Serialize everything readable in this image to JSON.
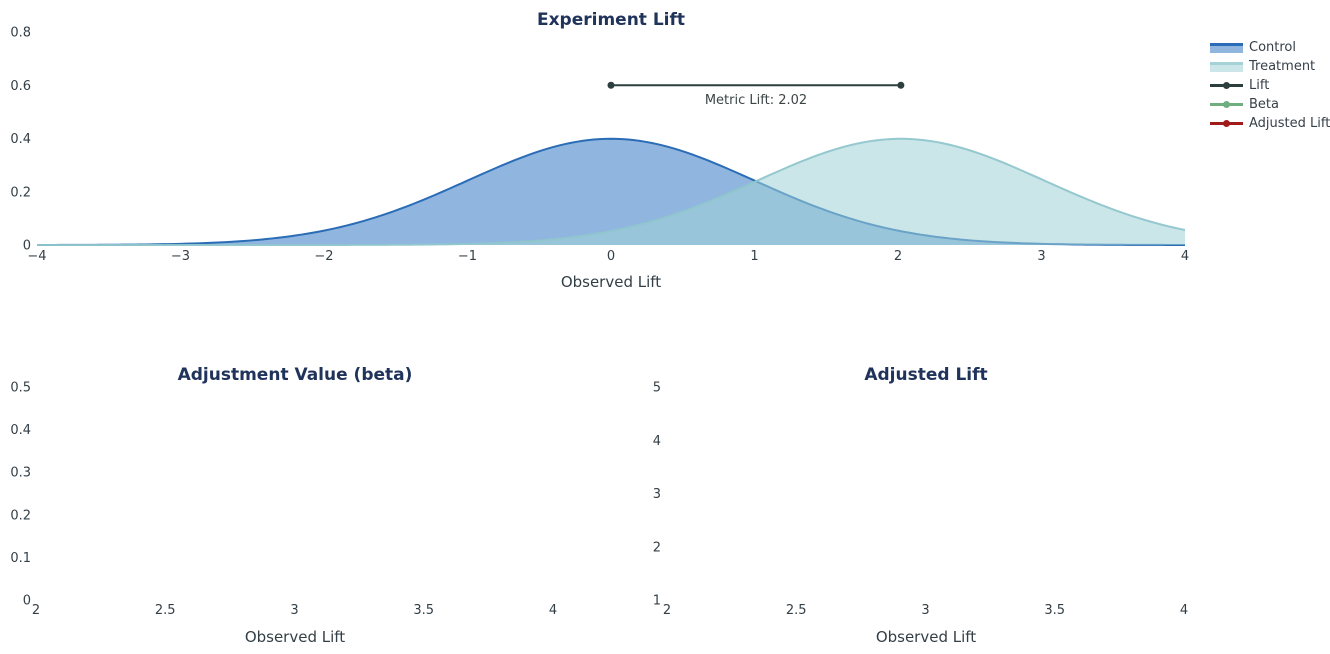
{
  "page": {
    "background": "#ffffff",
    "title_color": "#20335a",
    "tick_color": "#333f46"
  },
  "legend": {
    "position": "top-right",
    "items": [
      {
        "label": "Control",
        "kind": "area",
        "fill": "#90b6e0",
        "line": "#2a6cb5"
      },
      {
        "label": "Treatment",
        "kind": "area",
        "fill": "#cbe6e9",
        "line": "#a5d2d7"
      },
      {
        "label": "Lift",
        "kind": "line",
        "line": "#2d3e3e"
      },
      {
        "label": "Beta",
        "kind": "line",
        "line": "#6fae7e"
      },
      {
        "label": "Adjusted Lift",
        "kind": "line",
        "line": "#a01c1c"
      }
    ]
  },
  "chart_data": [
    {
      "type": "area",
      "title": "Experiment Lift",
      "xlabel": "Observed Lift",
      "ylabel": "",
      "xlim": [
        -4,
        4
      ],
      "ylim": [
        0,
        0.8
      ],
      "xticks": [
        -4,
        -3,
        -2,
        -1,
        0,
        1,
        2,
        3,
        4
      ],
      "yticks": [
        0,
        0.2,
        0.4,
        0.6,
        0.8
      ],
      "grid": false,
      "series": [
        {
          "name": "Control",
          "curve": "normal_pdf",
          "mean": 0,
          "sd": 1,
          "peak_density": 0.399,
          "fill": "#90b6e0",
          "line": "#2a6cb5"
        },
        {
          "name": "Treatment",
          "curve": "normal_pdf",
          "mean": 2.02,
          "sd": 1,
          "peak_density": 0.399,
          "fill": "rgba(158,209,213,0.55)",
          "line": "rgba(143,198,204,0.95)"
        }
      ],
      "annotation": {
        "label": "Metric Lift: 2.02",
        "value": 2.02,
        "x0": 0,
        "x1": 2.02,
        "y": 0.6,
        "color": "#2d3e3e"
      }
    },
    {
      "type": "line",
      "title": "Adjustment Value (beta)",
      "xlabel": "Observed Lift",
      "ylabel": "",
      "xlim": [
        2,
        4
      ],
      "ylim": [
        0,
        0.5
      ],
      "xticks": [
        2,
        2.5,
        3,
        3.5,
        4
      ],
      "yticks": [
        0,
        0.1,
        0.2,
        0.3,
        0.4,
        0.5
      ],
      "grid": false,
      "series": []
    },
    {
      "type": "line",
      "title": "Adjusted Lift",
      "xlabel": "Observed Lift",
      "ylabel": "",
      "xlim": [
        2,
        4
      ],
      "ylim": [
        1,
        5
      ],
      "xticks": [
        2,
        2.5,
        3,
        3.5,
        4
      ],
      "yticks": [
        1,
        2,
        3,
        4,
        5
      ],
      "grid": false,
      "series": []
    }
  ]
}
